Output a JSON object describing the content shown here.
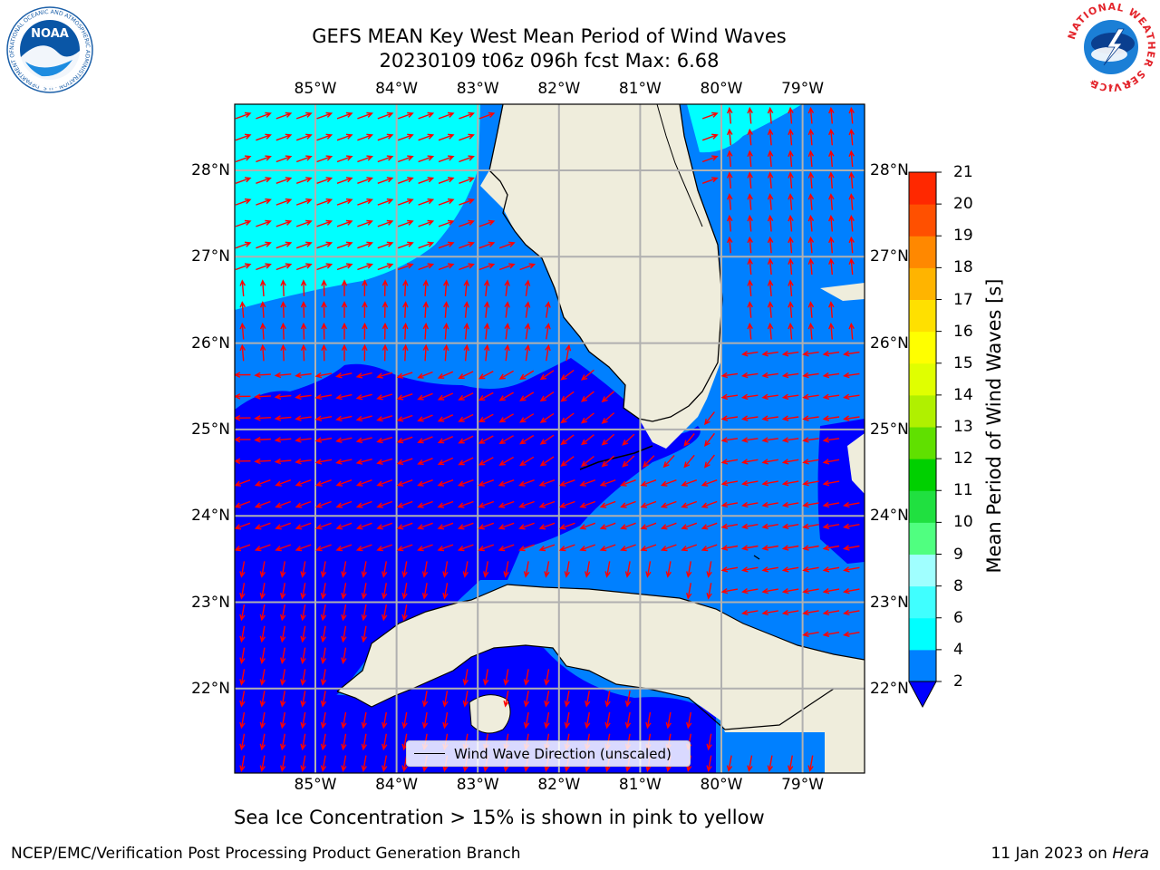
{
  "header": {
    "title_line1": "GEFS MEAN Key West Mean Period of Wind Waves",
    "title_line2": "20230109 t06z 096h fcst   Max: 6.68"
  },
  "logos": {
    "left": {
      "text": "NOAA",
      "ring_text": "NATIONAL OCEANIC AND ATMOSPHERIC ADMINISTRATION · U.S. DEPARTMENT OF COMMERCE",
      "color": "#1b5fa8"
    },
    "right": {
      "ring_text": "NATIONAL WEATHER SERVICE",
      "color": "#e3242b"
    }
  },
  "map": {
    "lon_labels": [
      "85°W",
      "84°W",
      "83°W",
      "82°W",
      "81°W",
      "80°W",
      "79°W"
    ],
    "lat_labels": [
      "28°N",
      "27°N",
      "26°N",
      "25°N",
      "24°N",
      "23°N",
      "22°N"
    ],
    "colors": {
      "land": "#efeddc",
      "band_2_4": "#0080ff",
      "band_4_6": "#00ffff",
      "band_below_2": "#0000ff",
      "arrow": "#ff0000",
      "grid": "#b0b0b0"
    }
  },
  "legend": {
    "label": "Wind Wave Direction (unscaled)"
  },
  "colorbar": {
    "title": "Mean Period of Wind Waves [s]",
    "ticks": [
      "2",
      "4",
      "6",
      "8",
      "9",
      "10",
      "11",
      "12",
      "13",
      "14",
      "15",
      "16",
      "17",
      "18",
      "19",
      "20",
      "21"
    ],
    "colors": [
      "#0080ff",
      "#00ffff",
      "#40ffff",
      "#a0ffff",
      "#50ff80",
      "#20e040",
      "#00d000",
      "#60e000",
      "#b0f000",
      "#e0ff00",
      "#ffff00",
      "#ffe000",
      "#ffb400",
      "#ff8800",
      "#ff5000",
      "#ff2800",
      "#ff0000"
    ],
    "below_color": "#0000ff"
  },
  "caption": "Sea Ice Concentration > 15% is shown in pink to yellow",
  "footer": {
    "left": "NCEP/EMC/Verification Post Processing Product Generation Branch",
    "date": "11 Jan 2023 on ",
    "host": "Hera"
  }
}
